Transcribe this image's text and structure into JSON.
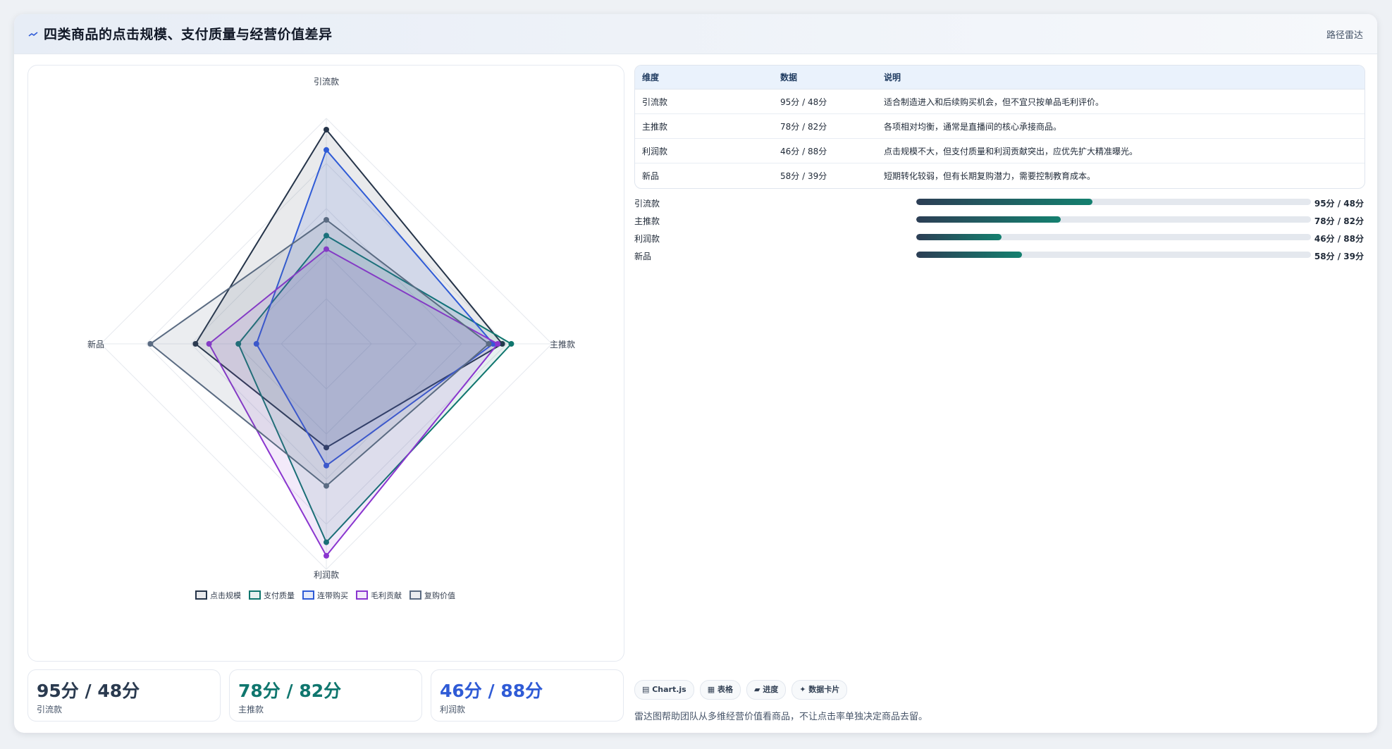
{
  "header": {
    "title": "四类商品的点击规模、支付质量与经营价值差异",
    "tag": "路径雷达"
  },
  "colors": {
    "series": [
      "#253449",
      "#0f766e",
      "#2f5bd6",
      "#8a35cf",
      "#5a6b82"
    ],
    "fills": [
      "rgba(37,52,73,0.10)",
      "rgba(15,118,110,0.10)",
      "rgba(47,91,214,0.12)",
      "rgba(138,53,207,0.10)",
      "rgba(90,107,130,0.12)"
    ]
  },
  "chart_data": {
    "type": "radar",
    "categories": [
      "引流款",
      "主推款",
      "利润款",
      "新品"
    ],
    "range": [
      0,
      100
    ],
    "series": [
      {
        "name": "点击规模",
        "values": [
          95,
          78,
          46,
          58
        ]
      },
      {
        "name": "支付质量",
        "values": [
          48,
          82,
          88,
          39
        ]
      },
      {
        "name": "连带购买",
        "values": [
          86,
          74,
          54,
          31
        ]
      },
      {
        "name": "毛利贡献",
        "values": [
          42,
          76,
          94,
          52
        ]
      },
      {
        "name": "复购价值",
        "values": [
          55,
          72,
          63,
          78
        ]
      }
    ],
    "legend_position": "bottom"
  },
  "table": {
    "headers": [
      "维度",
      "数据",
      "说明"
    ],
    "rows": [
      [
        "引流款",
        "95分 / 48分",
        "适合制造进入和后续购买机会，但不宜只按单品毛利评价。"
      ],
      [
        "主推款",
        "78分 / 82分",
        "各项相对均衡，通常是直播间的核心承接商品。"
      ],
      [
        "利润款",
        "46分 / 88分",
        "点击规模不大，但支付质量和利润贡献突出，应优先扩大精准曝光。"
      ],
      [
        "新品",
        "58分 / 39分",
        "短期转化较弱，但有长期复购潜力，需要控制教育成本。"
      ]
    ]
  },
  "bars": [
    {
      "label": "引流款",
      "value": "95分 / 48分",
      "fraction": 0.447
    },
    {
      "label": "主推款",
      "value": "78分 / 82分",
      "fraction": 0.366
    },
    {
      "label": "利润款",
      "value": "46分 / 88分",
      "fraction": 0.216
    },
    {
      "label": "新品",
      "value": "58分 / 39分",
      "fraction": 0.268
    }
  ],
  "stats": [
    {
      "value": "95分 / 48分",
      "label": "引流款",
      "color": "#2a3a4f"
    },
    {
      "value": "78分 / 82分",
      "label": "主推款",
      "color": "#0f766e"
    },
    {
      "value": "46分 / 88分",
      "label": "利润款",
      "color": "#2f5bd6"
    }
  ],
  "chips": [
    "▤ Chart.js",
    "▦ 表格",
    "▰ 进度",
    "✦ 数据卡片"
  ],
  "note": "雷达图帮助团队从多维经营价值看商品，不让点击率单独决定商品去留。"
}
